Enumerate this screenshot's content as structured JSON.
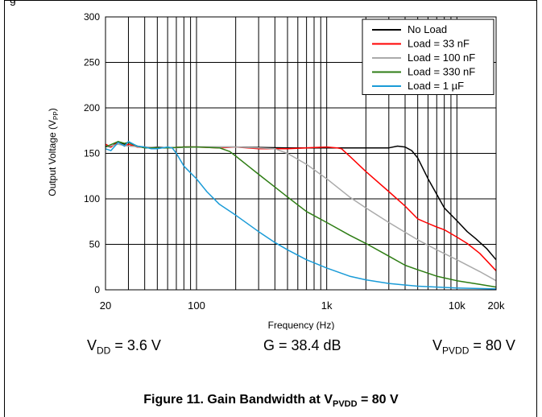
{
  "header_fragment": "g",
  "conditions": {
    "vdd": {
      "symbol": "V",
      "sub": "DD",
      "value": " = 3.6 V"
    },
    "gain": "G = 38.4 dB",
    "pvdd": {
      "symbol": "V",
      "sub": "PVDD",
      "value": " = 80 V"
    }
  },
  "caption": {
    "text": "Figure 11. Gain Bandwidth at V",
    "sub": "PVDD",
    "suffix": " = 80 V"
  },
  "chart_data": {
    "type": "line",
    "title": "",
    "xlabel": "Frequency (Hz)",
    "ylabel": {
      "text": "Output Voltage (V",
      "sub": "PP",
      "suffix": ")"
    },
    "xscale": "log",
    "xlim": [
      20,
      20000
    ],
    "ylim": [
      0,
      300
    ],
    "xticks": [
      20,
      100,
      1000,
      10000,
      20000
    ],
    "xtick_labels": [
      "20",
      "100",
      "1k",
      "10k",
      "20k"
    ],
    "yticks": [
      0,
      50,
      100,
      150,
      200,
      250,
      300
    ],
    "ytick_labels": [
      "0",
      "50",
      "100",
      "150",
      "200",
      "250",
      "300"
    ],
    "grid": true,
    "legend_position": "top-right",
    "series": [
      {
        "name": "No Load",
        "color": "#000000",
        "points": [
          [
            20,
            158
          ],
          [
            22,
            157
          ],
          [
            25,
            163
          ],
          [
            28,
            160
          ],
          [
            30,
            162
          ],
          [
            35,
            158
          ],
          [
            40,
            156
          ],
          [
            50,
            157
          ],
          [
            60,
            156
          ],
          [
            80,
            157
          ],
          [
            100,
            157
          ],
          [
            200,
            157
          ],
          [
            500,
            156
          ],
          [
            1000,
            156
          ],
          [
            2000,
            156
          ],
          [
            3000,
            156
          ],
          [
            3500,
            158
          ],
          [
            4000,
            157
          ],
          [
            4500,
            153
          ],
          [
            5000,
            145
          ],
          [
            6000,
            122
          ],
          [
            7000,
            105
          ],
          [
            8000,
            90
          ],
          [
            10000,
            76
          ],
          [
            12000,
            64
          ],
          [
            14000,
            56
          ],
          [
            17000,
            45
          ],
          [
            20000,
            33
          ]
        ]
      },
      {
        "name": "Load = 33 nF",
        "color": "#ff0000",
        "points": [
          [
            20,
            160
          ],
          [
            22,
            157
          ],
          [
            25,
            162
          ],
          [
            28,
            158
          ],
          [
            30,
            160
          ],
          [
            35,
            157
          ],
          [
            40,
            157
          ],
          [
            50,
            156
          ],
          [
            60,
            156
          ],
          [
            80,
            157
          ],
          [
            100,
            157
          ],
          [
            150,
            156
          ],
          [
            200,
            157
          ],
          [
            300,
            155
          ],
          [
            500,
            155
          ],
          [
            700,
            156
          ],
          [
            1000,
            157
          ],
          [
            1200,
            156
          ],
          [
            1300,
            155
          ],
          [
            1500,
            147
          ],
          [
            2000,
            130
          ],
          [
            3000,
            108
          ],
          [
            4000,
            92
          ],
          [
            5000,
            78
          ],
          [
            6000,
            73
          ],
          [
            7000,
            69
          ],
          [
            8000,
            66
          ],
          [
            10000,
            58
          ],
          [
            12000,
            51
          ],
          [
            15000,
            40
          ],
          [
            20000,
            21
          ]
        ]
      },
      {
        "name": "Load = 100 nF",
        "color": "#aaaaaa",
        "points": [
          [
            20,
            157
          ],
          [
            25,
            160
          ],
          [
            30,
            158
          ],
          [
            40,
            157
          ],
          [
            60,
            156
          ],
          [
            100,
            157
          ],
          [
            200,
            157
          ],
          [
            300,
            156
          ],
          [
            400,
            155
          ],
          [
            500,
            150
          ],
          [
            700,
            138
          ],
          [
            1000,
            122
          ],
          [
            1500,
            102
          ],
          [
            2000,
            90
          ],
          [
            3000,
            74
          ],
          [
            5000,
            55
          ],
          [
            7000,
            44
          ],
          [
            10000,
            33
          ],
          [
            15000,
            20
          ],
          [
            20000,
            10
          ]
        ]
      },
      {
        "name": "Load = 330 nF",
        "color": "#2e7d14",
        "points": [
          [
            20,
            157
          ],
          [
            25,
            163
          ],
          [
            28,
            161
          ],
          [
            30,
            162
          ],
          [
            35,
            158
          ],
          [
            40,
            156
          ],
          [
            60,
            156
          ],
          [
            80,
            157
          ],
          [
            100,
            157
          ],
          [
            150,
            156
          ],
          [
            180,
            152
          ],
          [
            200,
            147
          ],
          [
            250,
            136
          ],
          [
            300,
            127
          ],
          [
            400,
            113
          ],
          [
            500,
            102
          ],
          [
            700,
            86
          ],
          [
            1000,
            74
          ],
          [
            1500,
            60
          ],
          [
            2000,
            51
          ],
          [
            3000,
            37
          ],
          [
            4000,
            27
          ],
          [
            5000,
            22
          ],
          [
            7000,
            15
          ],
          [
            10000,
            10
          ],
          [
            15000,
            6
          ],
          [
            20000,
            3
          ]
        ]
      },
      {
        "name": "Load = 1 µF",
        "color": "#1a9bd7",
        "points": [
          [
            20,
            155
          ],
          [
            22,
            153
          ],
          [
            25,
            162
          ],
          [
            28,
            158
          ],
          [
            30,
            163
          ],
          [
            35,
            158
          ],
          [
            40,
            157
          ],
          [
            45,
            155
          ],
          [
            50,
            155
          ],
          [
            60,
            157
          ],
          [
            65,
            156
          ],
          [
            70,
            150
          ],
          [
            80,
            136
          ],
          [
            100,
            122
          ],
          [
            120,
            108
          ],
          [
            150,
            94
          ],
          [
            200,
            82
          ],
          [
            300,
            64
          ],
          [
            400,
            52
          ],
          [
            500,
            44
          ],
          [
            700,
            33
          ],
          [
            1000,
            24
          ],
          [
            1500,
            15
          ],
          [
            2000,
            11
          ],
          [
            3000,
            7
          ],
          [
            5000,
            4
          ],
          [
            10000,
            2
          ],
          [
            20000,
            1
          ]
        ]
      }
    ]
  }
}
